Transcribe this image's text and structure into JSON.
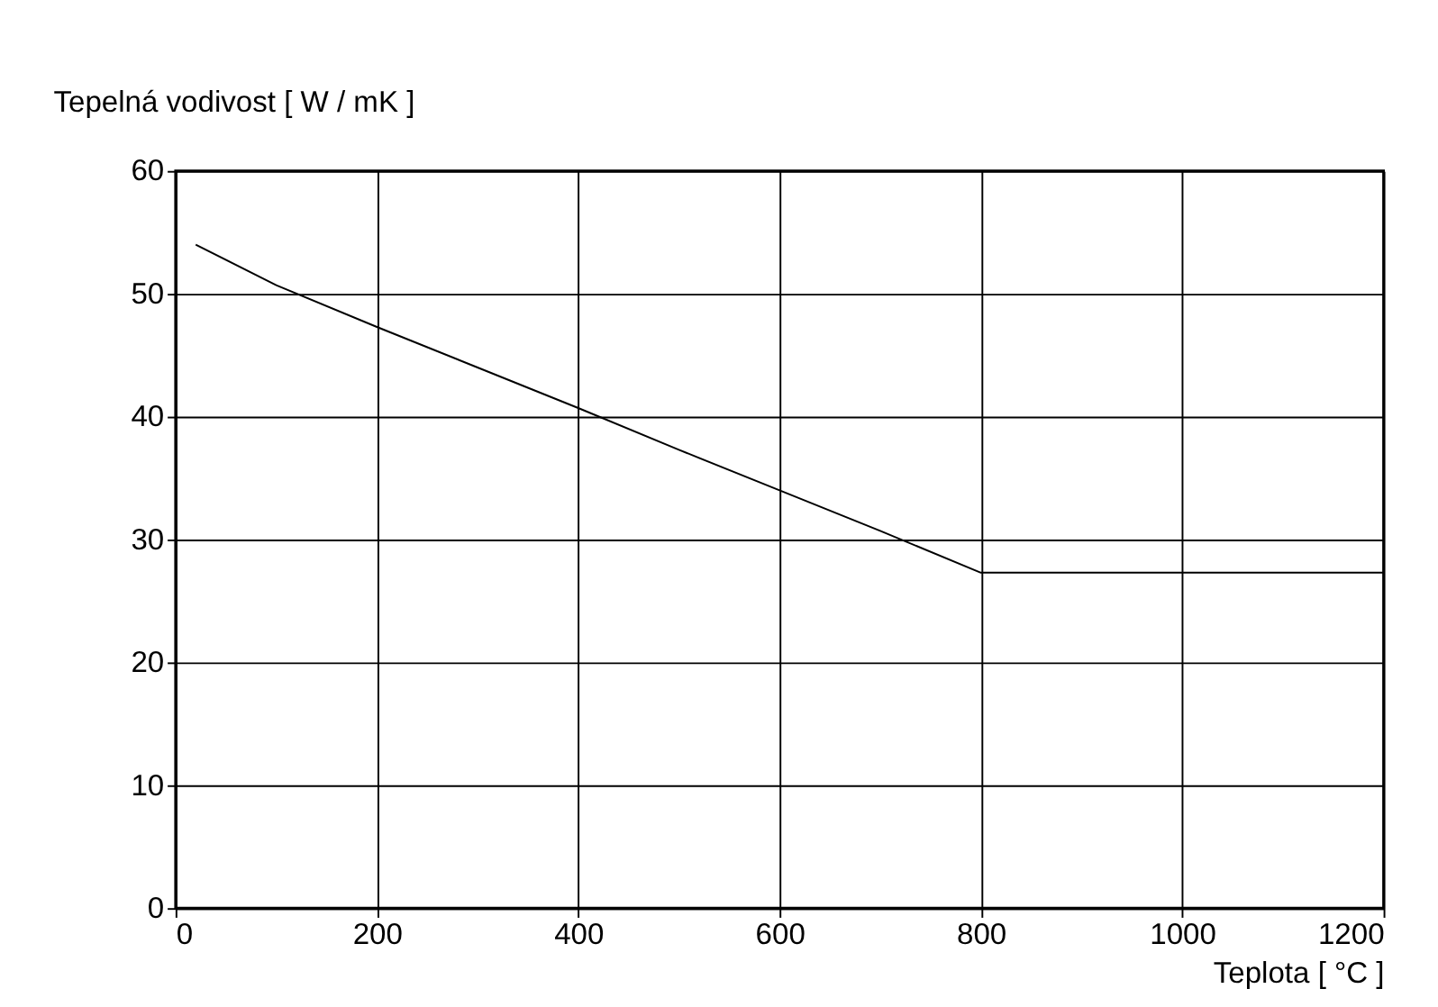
{
  "chart_data": {
    "type": "line",
    "xlabel": "Teplota  [ °C  ]",
    "ylabel": "Tepelná vodivost  [ W / mK ]",
    "x": [
      20,
      100,
      200,
      300,
      400,
      500,
      600,
      700,
      800,
      900,
      1000,
      1100,
      1200
    ],
    "series": [
      {
        "color": "#000000",
        "values": [
          54,
          50.7,
          47.3,
          44,
          40.7,
          37.3,
          34,
          30.7,
          27.3,
          27.3,
          27.3,
          27.3,
          27.3
        ]
      }
    ],
    "xlim": [
      0,
      1200
    ],
    "xticks": [
      0,
      200,
      400,
      600,
      800,
      1000,
      1200
    ],
    "ylim": [
      0,
      60
    ],
    "yticks": [
      0,
      10,
      20,
      30,
      40,
      50,
      60
    ],
    "grid": true,
    "marker": "none",
    "line_style": "solid"
  }
}
